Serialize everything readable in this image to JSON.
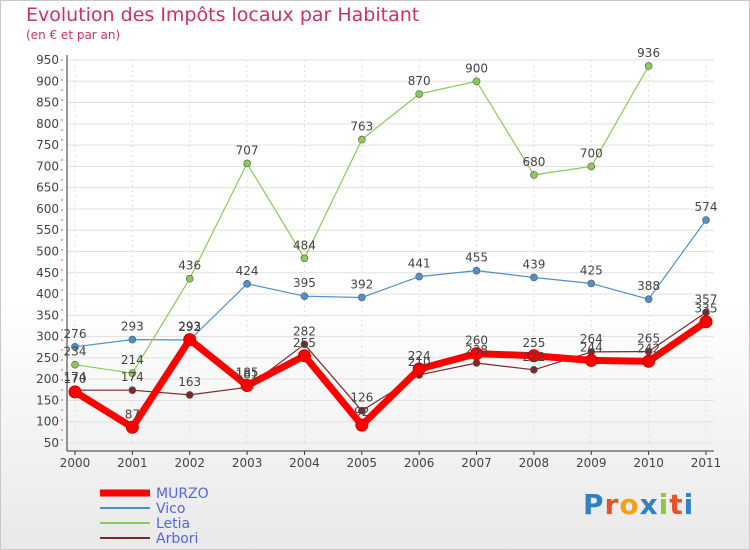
{
  "colors": {
    "title": "#d0306a",
    "axis": "#333333",
    "grid": "#e0e0e0"
  },
  "logo": {
    "letters": [
      {
        "ch": "P",
        "color": "#2f82c8"
      },
      {
        "ch": "r",
        "color": "#e8502a"
      },
      {
        "ch": "o",
        "color": "#f1a21a"
      },
      {
        "ch": "x",
        "color": "#2f82c8"
      },
      {
        "ch": "i",
        "color": "#8ec63f"
      },
      {
        "ch": "t",
        "color": "#e8502a"
      },
      {
        "ch": "i",
        "color": "#2f82c8"
      }
    ]
  },
  "chart_data": {
    "type": "line",
    "title": "Evolution des Impôts locaux par Habitant",
    "subtitle": "(en € et par an)",
    "xlabel": "",
    "ylabel": "",
    "x": [
      "2000",
      "2001",
      "2002",
      "2003",
      "2004",
      "2005",
      "2006",
      "2007",
      "2008",
      "2009",
      "2010",
      "2011"
    ],
    "ylim": [
      50,
      950
    ],
    "yticks": [
      50,
      100,
      150,
      200,
      250,
      300,
      350,
      400,
      450,
      500,
      550,
      600,
      650,
      700,
      750,
      800,
      850,
      900,
      950
    ],
    "legend_position": "bottom-left",
    "series": [
      {
        "name": "MURZO",
        "color": "#ff0000",
        "values": [
          170,
          87,
          293,
          185,
          255,
          92,
          224,
          260,
          255,
          244,
          242,
          335
        ],
        "labels": [
          "170",
          "87",
          "293",
          "185",
          "255",
          "92",
          "224",
          "260",
          "255",
          "244",
          "242",
          "335"
        ]
      },
      {
        "name": "Vico",
        "color": "#4f90cc",
        "values": [
          276,
          293,
          292,
          424,
          395,
          392,
          441,
          455,
          439,
          425,
          388,
          574
        ],
        "labels": [
          "276",
          "293",
          "292",
          "424",
          "395",
          "392",
          "441",
          "455",
          "439",
          "425",
          "388",
          "574"
        ]
      },
      {
        "name": "Letia",
        "color": "#88cc55",
        "values": [
          234,
          214,
          436,
          707,
          484,
          763,
          870,
          900,
          680,
          700,
          936,
          null
        ],
        "labels": [
          "234",
          "214",
          "436",
          "707",
          "484",
          "763",
          "870",
          "900",
          "680",
          "700",
          "936",
          ""
        ]
      },
      {
        "name": "Arbori",
        "color": "#7a2a2a",
        "values": [
          174,
          174,
          163,
          181,
          282,
          126,
          210,
          238,
          222,
          264,
          265,
          357
        ],
        "labels": [
          "174",
          "174",
          "163",
          "181",
          "282",
          "126",
          "210",
          "238",
          "222",
          "264",
          "265",
          "357"
        ]
      }
    ]
  }
}
